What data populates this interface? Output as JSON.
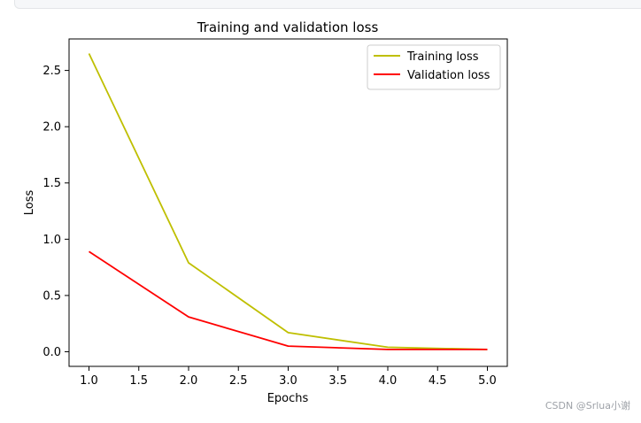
{
  "header": {
    "bar_label": ""
  },
  "watermark": "CSDN @Srlua小谢",
  "chart_data": {
    "type": "line",
    "title": "Training and validation loss",
    "xlabel": "Epochs",
    "ylabel": "Loss",
    "xlim": [
      0.8,
      5.2
    ],
    "ylim": [
      -0.13,
      2.78
    ],
    "xticks": [
      1.0,
      1.5,
      2.0,
      2.5,
      3.0,
      3.5,
      4.0,
      4.5,
      5.0
    ],
    "xtick_labels": [
      "1.0",
      "1.5",
      "2.0",
      "2.5",
      "3.0",
      "3.5",
      "4.0",
      "4.5",
      "5.0"
    ],
    "yticks": [
      0.0,
      0.5,
      1.0,
      1.5,
      2.0,
      2.5
    ],
    "ytick_labels": [
      "0.0",
      "0.5",
      "1.0",
      "1.5",
      "2.0",
      "2.5"
    ],
    "grid": false,
    "legend_position": "top-right",
    "x": [
      1,
      2,
      3,
      4,
      5
    ],
    "series": [
      {
        "name": "Training loss",
        "color": "#bfbf00",
        "values": [
          2.65,
          0.79,
          0.17,
          0.04,
          0.02
        ]
      },
      {
        "name": "Validation loss",
        "color": "#ff0000",
        "values": [
          0.89,
          0.31,
          0.05,
          0.02,
          0.02
        ]
      }
    ]
  }
}
